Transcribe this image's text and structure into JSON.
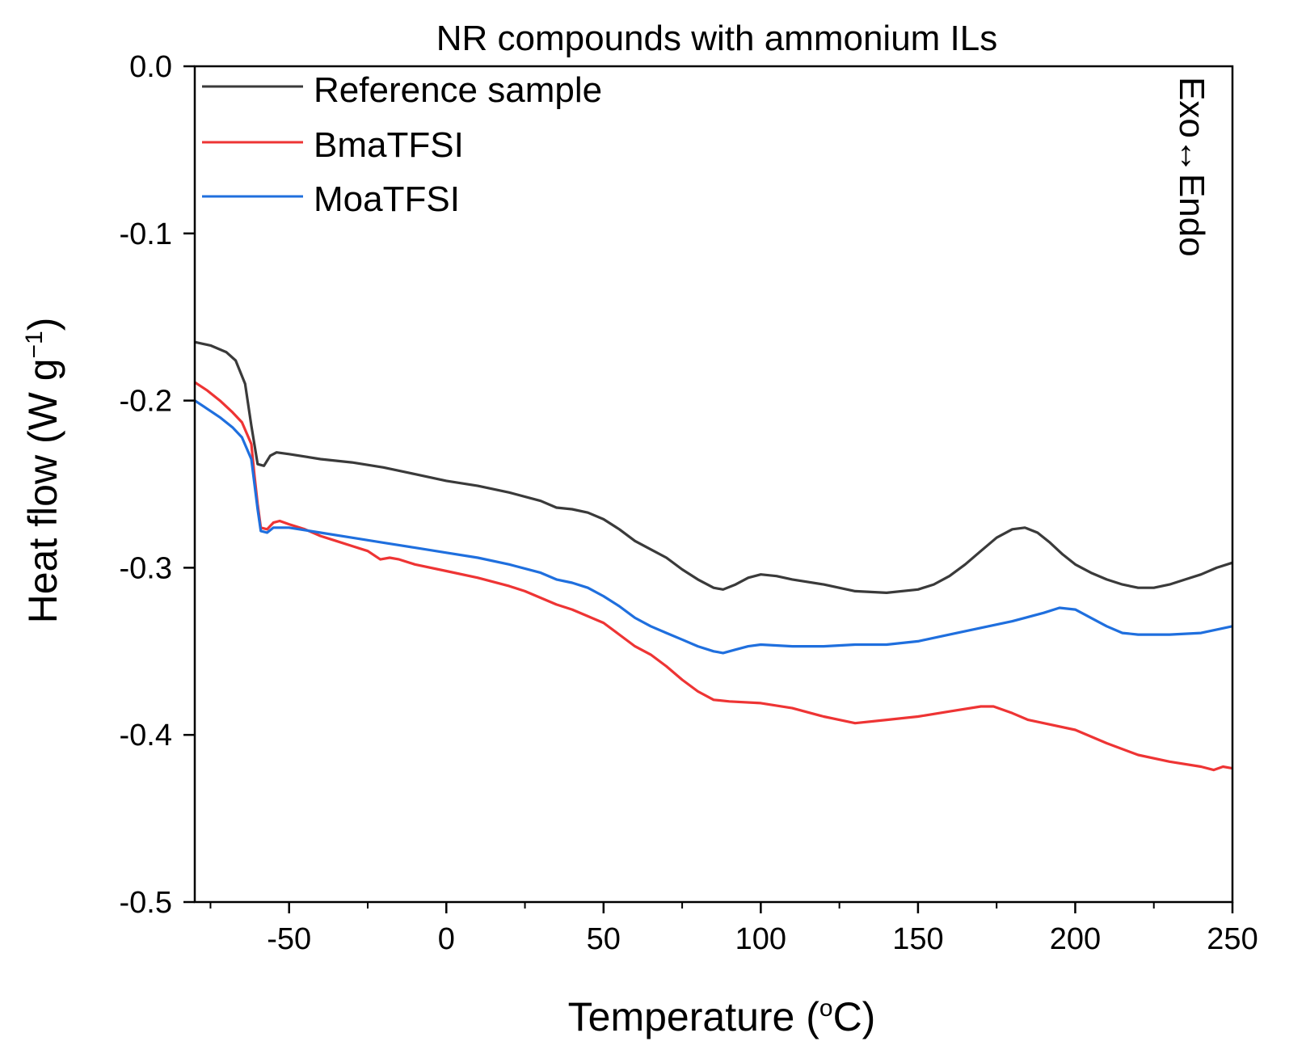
{
  "chart_data": {
    "type": "line",
    "title": "NR compounds with ammonium ILs",
    "xlabel": "Temperature (",
    "xlabel_sup": "o",
    "xlabel_end": "C)",
    "ylabel": "Heat flow (W g",
    "ylabel_sup": "−1",
    "ylabel_end": ")",
    "xlim": [
      -80,
      250
    ],
    "ylim": [
      -0.5,
      0.0
    ],
    "x_ticks": [
      -50,
      0,
      50,
      100,
      150,
      200,
      250
    ],
    "x_tick_labels": [
      "-50",
      "0",
      "50",
      "100",
      "150",
      "200",
      "250"
    ],
    "y_ticks": [
      0.0,
      -0.1,
      -0.2,
      -0.3,
      -0.4,
      -0.5
    ],
    "y_tick_labels": [
      "0.0",
      "-0.1",
      "-0.2",
      "-0.3",
      "-0.4",
      "-0.5"
    ],
    "annotation": "Exo↔Endo",
    "legend_position": "top-left",
    "series": [
      {
        "name": "Reference sample",
        "color": "#3a3a3a",
        "points": [
          [
            -80,
            -0.165
          ],
          [
            -75,
            -0.167
          ],
          [
            -70,
            -0.171
          ],
          [
            -67,
            -0.176
          ],
          [
            -64,
            -0.19
          ],
          [
            -62,
            -0.215
          ],
          [
            -60,
            -0.238
          ],
          [
            -58,
            -0.239
          ],
          [
            -56,
            -0.233
          ],
          [
            -54,
            -0.231
          ],
          [
            -50,
            -0.232
          ],
          [
            -40,
            -0.235
          ],
          [
            -30,
            -0.237
          ],
          [
            -20,
            -0.24
          ],
          [
            -10,
            -0.244
          ],
          [
            0,
            -0.248
          ],
          [
            10,
            -0.251
          ],
          [
            20,
            -0.255
          ],
          [
            30,
            -0.26
          ],
          [
            35,
            -0.264
          ],
          [
            40,
            -0.265
          ],
          [
            45,
            -0.267
          ],
          [
            50,
            -0.271
          ],
          [
            55,
            -0.277
          ],
          [
            60,
            -0.284
          ],
          [
            65,
            -0.289
          ],
          [
            70,
            -0.294
          ],
          [
            75,
            -0.301
          ],
          [
            80,
            -0.307
          ],
          [
            85,
            -0.312
          ],
          [
            88,
            -0.313
          ],
          [
            92,
            -0.31
          ],
          [
            96,
            -0.306
          ],
          [
            100,
            -0.304
          ],
          [
            105,
            -0.305
          ],
          [
            110,
            -0.307
          ],
          [
            120,
            -0.31
          ],
          [
            130,
            -0.314
          ],
          [
            140,
            -0.315
          ],
          [
            150,
            -0.313
          ],
          [
            155,
            -0.31
          ],
          [
            160,
            -0.305
          ],
          [
            165,
            -0.298
          ],
          [
            170,
            -0.29
          ],
          [
            175,
            -0.282
          ],
          [
            180,
            -0.277
          ],
          [
            184,
            -0.276
          ],
          [
            188,
            -0.279
          ],
          [
            192,
            -0.285
          ],
          [
            196,
            -0.292
          ],
          [
            200,
            -0.298
          ],
          [
            205,
            -0.303
          ],
          [
            210,
            -0.307
          ],
          [
            215,
            -0.31
          ],
          [
            220,
            -0.312
          ],
          [
            225,
            -0.312
          ],
          [
            230,
            -0.31
          ],
          [
            235,
            -0.307
          ],
          [
            240,
            -0.304
          ],
          [
            245,
            -0.3
          ],
          [
            250,
            -0.297
          ]
        ]
      },
      {
        "name": "BmaTFSI",
        "color": "#ee3434",
        "points": [
          [
            -80,
            -0.189
          ],
          [
            -76,
            -0.194
          ],
          [
            -72,
            -0.2
          ],
          [
            -68,
            -0.207
          ],
          [
            -65,
            -0.213
          ],
          [
            -62,
            -0.226
          ],
          [
            -61,
            -0.245
          ],
          [
            -60,
            -0.262
          ],
          [
            -59,
            -0.276
          ],
          [
            -57,
            -0.277
          ],
          [
            -55,
            -0.273
          ],
          [
            -53,
            -0.272
          ],
          [
            -50,
            -0.274
          ],
          [
            -45,
            -0.277
          ],
          [
            -40,
            -0.281
          ],
          [
            -35,
            -0.284
          ],
          [
            -30,
            -0.287
          ],
          [
            -25,
            -0.29
          ],
          [
            -21,
            -0.295
          ],
          [
            -18,
            -0.294
          ],
          [
            -15,
            -0.295
          ],
          [
            -10,
            -0.298
          ],
          [
            0,
            -0.302
          ],
          [
            10,
            -0.306
          ],
          [
            20,
            -0.311
          ],
          [
            25,
            -0.314
          ],
          [
            30,
            -0.318
          ],
          [
            35,
            -0.322
          ],
          [
            40,
            -0.325
          ],
          [
            45,
            -0.329
          ],
          [
            50,
            -0.333
          ],
          [
            55,
            -0.34
          ],
          [
            60,
            -0.347
          ],
          [
            65,
            -0.352
          ],
          [
            70,
            -0.359
          ],
          [
            75,
            -0.367
          ],
          [
            80,
            -0.374
          ],
          [
            85,
            -0.379
          ],
          [
            90,
            -0.38
          ],
          [
            100,
            -0.381
          ],
          [
            110,
            -0.384
          ],
          [
            120,
            -0.389
          ],
          [
            130,
            -0.393
          ],
          [
            140,
            -0.391
          ],
          [
            150,
            -0.389
          ],
          [
            160,
            -0.386
          ],
          [
            170,
            -0.383
          ],
          [
            174,
            -0.383
          ],
          [
            180,
            -0.387
          ],
          [
            185,
            -0.391
          ],
          [
            190,
            -0.393
          ],
          [
            200,
            -0.397
          ],
          [
            210,
            -0.405
          ],
          [
            220,
            -0.412
          ],
          [
            230,
            -0.416
          ],
          [
            240,
            -0.419
          ],
          [
            244,
            -0.421
          ],
          [
            247,
            -0.419
          ],
          [
            250,
            -0.42
          ]
        ]
      },
      {
        "name": "MoaTFSI",
        "color": "#1f6fde",
        "points": [
          [
            -80,
            -0.2
          ],
          [
            -76,
            -0.205
          ],
          [
            -72,
            -0.21
          ],
          [
            -68,
            -0.216
          ],
          [
            -65,
            -0.222
          ],
          [
            -62,
            -0.235
          ],
          [
            -61,
            -0.25
          ],
          [
            -60,
            -0.265
          ],
          [
            -59,
            -0.278
          ],
          [
            -57,
            -0.279
          ],
          [
            -55,
            -0.276
          ],
          [
            -50,
            -0.276
          ],
          [
            -40,
            -0.279
          ],
          [
            -30,
            -0.282
          ],
          [
            -20,
            -0.285
          ],
          [
            -10,
            -0.288
          ],
          [
            0,
            -0.291
          ],
          [
            10,
            -0.294
          ],
          [
            20,
            -0.298
          ],
          [
            30,
            -0.303
          ],
          [
            35,
            -0.307
          ],
          [
            40,
            -0.309
          ],
          [
            45,
            -0.312
          ],
          [
            50,
            -0.317
          ],
          [
            55,
            -0.323
          ],
          [
            60,
            -0.33
          ],
          [
            65,
            -0.335
          ],
          [
            70,
            -0.339
          ],
          [
            75,
            -0.343
          ],
          [
            80,
            -0.347
          ],
          [
            85,
            -0.35
          ],
          [
            88,
            -0.351
          ],
          [
            92,
            -0.349
          ],
          [
            96,
            -0.347
          ],
          [
            100,
            -0.346
          ],
          [
            110,
            -0.347
          ],
          [
            120,
            -0.347
          ],
          [
            130,
            -0.346
          ],
          [
            140,
            -0.346
          ],
          [
            150,
            -0.344
          ],
          [
            160,
            -0.34
          ],
          [
            170,
            -0.336
          ],
          [
            180,
            -0.332
          ],
          [
            190,
            -0.327
          ],
          [
            195,
            -0.324
          ],
          [
            200,
            -0.325
          ],
          [
            205,
            -0.33
          ],
          [
            210,
            -0.335
          ],
          [
            215,
            -0.339
          ],
          [
            220,
            -0.34
          ],
          [
            230,
            -0.34
          ],
          [
            240,
            -0.339
          ],
          [
            245,
            -0.337
          ],
          [
            250,
            -0.335
          ]
        ]
      }
    ]
  }
}
